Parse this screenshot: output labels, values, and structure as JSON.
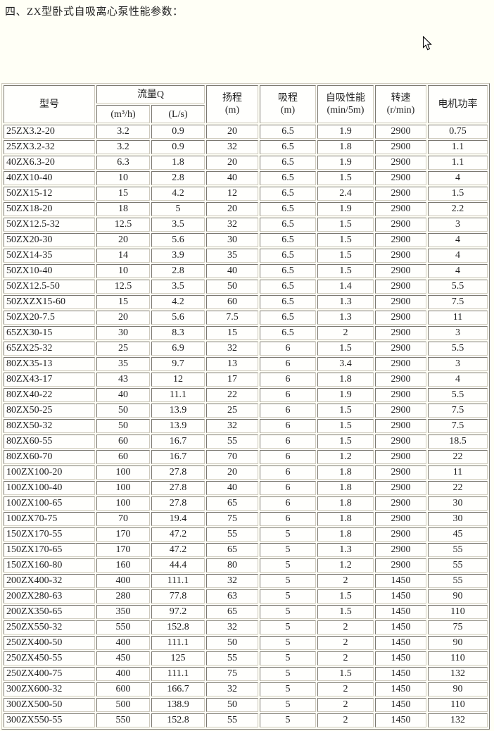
{
  "page": {
    "title": "四、ZX型卧式自吸离心泵性能参数："
  },
  "colors": {
    "page_background": "#FFFFF6",
    "cell_background": "#FFFFFD",
    "table_border": "#CFCBBD",
    "text": "#1F1F1F"
  },
  "table": {
    "headers": {
      "model": "型号",
      "flow_group": "流量Q",
      "flow_m3h": "(m³/h)",
      "flow_ls": "(L/s)",
      "head_line1": "扬程",
      "head_line2": "(m)",
      "suction_line1": "吸程",
      "suction_line2": "(m)",
      "selfprime_line1": "自吸性能",
      "selfprime_line2": "(min/5m)",
      "speed_line1": "转速",
      "speed_line2": "(r/min)",
      "power": "电机功率"
    },
    "rows": [
      [
        "25ZX3.2-20",
        "3.2",
        "0.9",
        "20",
        "6.5",
        "1.9",
        "2900",
        "0.75"
      ],
      [
        "25ZX3.2-32",
        "3.2",
        "0.9",
        "32",
        "6.5",
        "1.8",
        "2900",
        "1.1"
      ],
      [
        "40ZX6.3-20",
        "6.3",
        "1.8",
        "20",
        "6.5",
        "1.9",
        "2900",
        "1.1"
      ],
      [
        "40ZX10-40",
        "10",
        "2.8",
        "40",
        "6.5",
        "1.5",
        "2900",
        "4"
      ],
      [
        "50ZX15-12",
        "15",
        "4.2",
        "12",
        "6.5",
        "2.4",
        "2900",
        "1.5"
      ],
      [
        "50ZX18-20",
        "18",
        "5",
        "20",
        "6.5",
        "1.9",
        "2900",
        "2.2"
      ],
      [
        "50ZX12.5-32",
        "12.5",
        "3.5",
        "32",
        "6.5",
        "1.5",
        "2900",
        "3"
      ],
      [
        "50ZX20-30",
        "20",
        "5.6",
        "30",
        "6.5",
        "1.5",
        "2900",
        "4"
      ],
      [
        "50ZX14-35",
        "14",
        "3.9",
        "35",
        "6.5",
        "1.5",
        "2900",
        "4"
      ],
      [
        "50ZX10-40",
        "10",
        "2.8",
        "40",
        "6.5",
        "1.5",
        "2900",
        "4"
      ],
      [
        "50ZX12.5-50",
        "12.5",
        "3.5",
        "50",
        "6.5",
        "1.4",
        "2900",
        "5.5"
      ],
      [
        "50ZXZX15-60",
        "15",
        "4.2",
        "60",
        "6.5",
        "1.3",
        "2900",
        "7.5"
      ],
      [
        "50ZX20-7.5",
        "20",
        "5.6",
        "7.5",
        "6.5",
        "1.3",
        "2900",
        "11"
      ],
      [
        "65ZX30-15",
        "30",
        "8.3",
        "15",
        "6.5",
        "2",
        "2900",
        "3"
      ],
      [
        "65ZX25-32",
        "25",
        "6.9",
        "32",
        "6",
        "1.5",
        "2900",
        "5.5"
      ],
      [
        "80ZX35-13",
        "35",
        "9.7",
        "13",
        "6",
        "3.4",
        "2900",
        "3"
      ],
      [
        "80ZX43-17",
        "43",
        "12",
        "17",
        "6",
        "1.8",
        "2900",
        "4"
      ],
      [
        "80ZX40-22",
        "40",
        "11.1",
        "22",
        "6",
        "1.9",
        "2900",
        "5.5"
      ],
      [
        "80ZX50-25",
        "50",
        "13.9",
        "25",
        "6",
        "1.5",
        "2900",
        "7.5"
      ],
      [
        "80ZX50-32",
        "50",
        "13.9",
        "32",
        "6",
        "1.5",
        "2900",
        "7.5"
      ],
      [
        "80ZX60-55",
        "60",
        "16.7",
        "55",
        "6",
        "1.5",
        "2900",
        "18.5"
      ],
      [
        "80ZX60-70",
        "60",
        "16.7",
        "70",
        "6",
        "1.2",
        "2900",
        "22"
      ],
      [
        "100ZX100-20",
        "100",
        "27.8",
        "20",
        "6",
        "1.8",
        "2900",
        "11"
      ],
      [
        "100ZX100-40",
        "100",
        "27.8",
        "40",
        "6",
        "1.8",
        "2900",
        "22"
      ],
      [
        "100ZX100-65",
        "100",
        "27.8",
        "65",
        "6",
        "1.8",
        "2900",
        "30"
      ],
      [
        "100ZX70-75",
        "70",
        "19.4",
        "75",
        "6",
        "1.8",
        "2900",
        "30"
      ],
      [
        "150ZX170-55",
        "170",
        "47.2",
        "55",
        "5",
        "1.8",
        "2900",
        "45"
      ],
      [
        "150ZX170-65",
        "170",
        "47.2",
        "65",
        "5",
        "1.3",
        "2900",
        "55"
      ],
      [
        "150ZX160-80",
        "160",
        "44.4",
        "80",
        "5",
        "1.2",
        "2900",
        "55"
      ],
      [
        "200ZX400-32",
        "400",
        "111.1",
        "32",
        "5",
        "2",
        "1450",
        "55"
      ],
      [
        "200ZX280-63",
        "280",
        "77.8",
        "63",
        "5",
        "1.5",
        "1450",
        "90"
      ],
      [
        "200ZX350-65",
        "350",
        "97.2",
        "65",
        "5",
        "1.5",
        "1450",
        "110"
      ],
      [
        "250ZX550-32",
        "550",
        "152.8",
        "32",
        "5",
        "2",
        "1450",
        "75"
      ],
      [
        "250ZX400-50",
        "400",
        "111.1",
        "50",
        "5",
        "2",
        "1450",
        "90"
      ],
      [
        "250ZX450-55",
        "450",
        "125",
        "55",
        "5",
        "2",
        "1450",
        "110"
      ],
      [
        "250ZX400-75",
        "400",
        "111.1",
        "75",
        "5",
        "1.5",
        "1450",
        "132"
      ],
      [
        "300ZX600-32",
        "600",
        "166.7",
        "32",
        "5",
        "2",
        "1450",
        "90"
      ],
      [
        "300ZX500-50",
        "500",
        "138.9",
        "50",
        "5",
        "2",
        "1450",
        "110"
      ],
      [
        "300ZX550-55",
        "550",
        "152.8",
        "55",
        "5",
        "2",
        "1450",
        "132"
      ]
    ]
  }
}
